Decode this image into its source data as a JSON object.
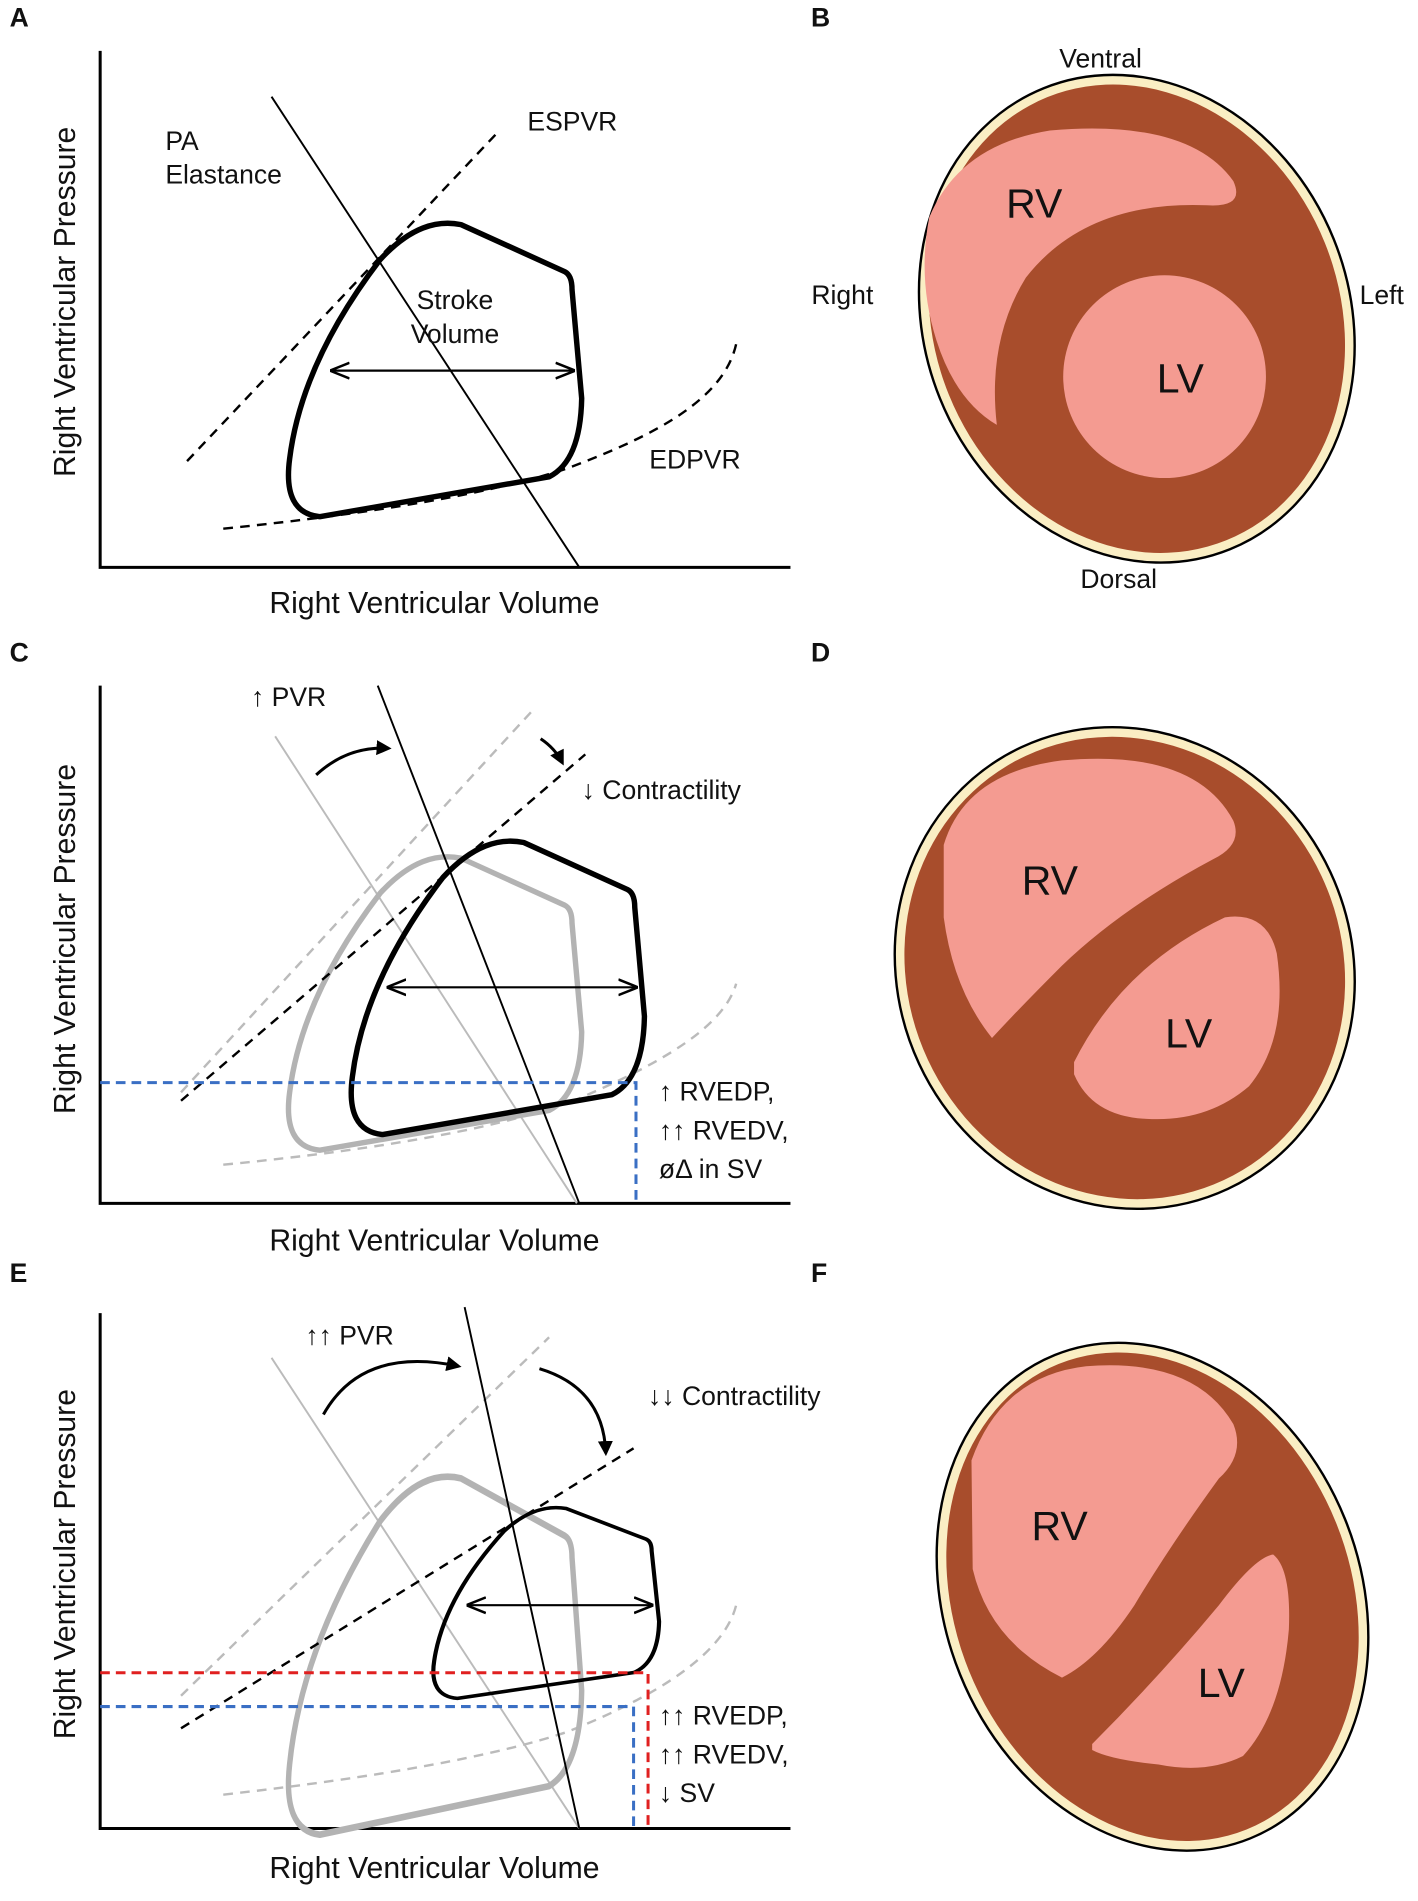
{
  "panels": [
    {
      "label": "A",
      "y_label": "Right Ventricular Pressure",
      "x_label": "Right Ventricular Volume",
      "annotations": [
        "PA",
        "Elastance",
        "ESPVR",
        "Stroke",
        "Volume",
        "EDPVR"
      ]
    },
    {
      "label": "B",
      "orientation": [
        "Ventral",
        "Right",
        "Left",
        "Dorsal"
      ],
      "chambers": [
        "RV",
        "LV"
      ]
    },
    {
      "label": "C",
      "y_label": "Right Ventricular Pressure",
      "x_label": "Right Ventricular Volume",
      "annotations": [
        "↑ PVR",
        "↓ Contractility",
        "↑ RVEDP,",
        "↑↑ RVEDV,",
        "øΔ in SV"
      ]
    },
    {
      "label": "D",
      "chambers": [
        "RV",
        "LV"
      ]
    },
    {
      "label": "E",
      "y_label": "Right Ventricular Pressure",
      "x_label": "Right Ventricular Volume",
      "annotations": [
        "↑↑ PVR",
        "↓↓ Contractility",
        "↑↑ RVEDP,",
        "↑↑ RVEDV,",
        "↓ SV"
      ]
    },
    {
      "label": "F",
      "chambers": [
        "RV",
        "LV"
      ]
    }
  ]
}
